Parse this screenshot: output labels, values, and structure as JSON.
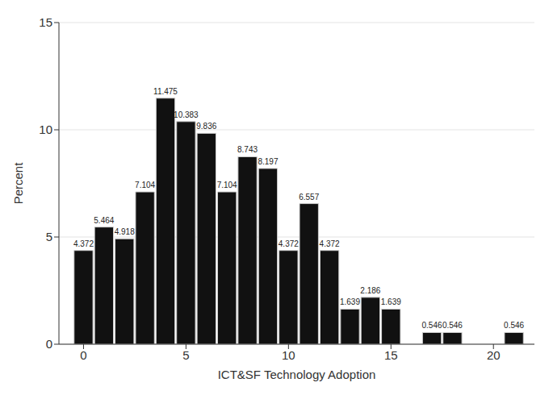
{
  "chart_data": {
    "type": "histogram",
    "x_label": "ICT&SF Technology Adoption",
    "y_label": "Percent",
    "bins": [
      -0.5,
      0.5,
      1.5,
      2.5,
      3.5,
      4.5,
      5.5,
      6.5,
      7.5,
      8.5,
      9.5,
      10.5,
      11.5,
      12.5,
      13.5,
      14.5,
      15.5,
      16.5,
      17.5,
      18.5,
      19.5,
      20.5,
      21.5
    ],
    "values": [
      4.372,
      5.464,
      4.918,
      7.104,
      11.475,
      10.383,
      9.836,
      7.104,
      8.743,
      8.197,
      4.372,
      6.557,
      4.372,
      1.639,
      2.186,
      1.639,
      0,
      0.546,
      0.546,
      0,
      0,
      0.546
    ],
    "color": "#111111",
    "xlim": [
      -1.2,
      22
    ],
    "xticks": [
      0,
      5,
      10,
      15,
      20
    ],
    "ylim": [
      0,
      15
    ],
    "yticks": [
      0,
      5,
      10,
      15
    ],
    "grid": true,
    "data_labels": true
  }
}
